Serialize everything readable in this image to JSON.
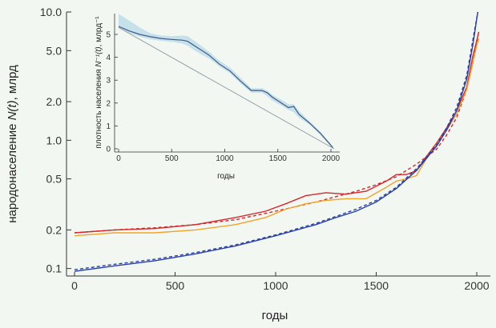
{
  "chart_data": [
    {
      "type": "line",
      "xlabel": "годы",
      "ylabel_prefix": "народонаселение ",
      "ylabel_italic": "N(t)",
      "ylabel_suffix": ", млрд",
      "xlim": [
        0,
        2050
      ],
      "ylim": [
        0.09,
        10.0
      ],
      "yscale": "log",
      "x_ticks": [
        "0",
        "500",
        "1000",
        "1500",
        "2000"
      ],
      "x_tick_values": [
        0,
        500,
        1000,
        1500,
        2000
      ],
      "y_ticks": [
        "10.0",
        "5.0",
        "2.0",
        "1.0",
        "0.5",
        "0.2",
        "0.1"
      ],
      "y_tick_values": [
        10.0,
        5.0,
        2.0,
        1.0,
        0.5,
        0.2,
        0.1
      ],
      "grid": false,
      "series": [
        {
          "color": "#d8262c",
          "style": "solid",
          "points": [
            [
              0,
              0.19
            ],
            [
              200,
              0.2
            ],
            [
              400,
              0.205
            ],
            [
              600,
              0.22
            ],
            [
              800,
              0.25
            ],
            [
              950,
              0.28
            ],
            [
              1050,
              0.32
            ],
            [
              1150,
              0.37
            ],
            [
              1250,
              0.39
            ],
            [
              1350,
              0.38
            ],
            [
              1450,
              0.4
            ],
            [
              1550,
              0.48
            ],
            [
              1600,
              0.54
            ],
            [
              1650,
              0.54
            ],
            [
              1700,
              0.58
            ],
            [
              1750,
              0.75
            ],
            [
              1800,
              0.95
            ],
            [
              1850,
              1.25
            ],
            [
              1900,
              1.7
            ],
            [
              1950,
              2.6
            ],
            [
              1980,
              4.5
            ],
            [
              2000,
              6.0
            ],
            [
              2010,
              7.0
            ]
          ]
        },
        {
          "color": "#d8262c",
          "style": "dashed",
          "points": [
            [
              0,
              0.19
            ],
            [
              200,
              0.2
            ],
            [
              400,
              0.208
            ],
            [
              600,
              0.22
            ],
            [
              800,
              0.24
            ],
            [
              1000,
              0.28
            ],
            [
              1200,
              0.33
            ],
            [
              1400,
              0.4
            ],
            [
              1500,
              0.45
            ],
            [
              1600,
              0.52
            ],
            [
              1700,
              0.65
            ],
            [
              1800,
              0.85
            ],
            [
              1850,
              1.1
            ],
            [
              1900,
              1.5
            ],
            [
              1950,
              2.5
            ],
            [
              1980,
              4.0
            ],
            [
              2010,
              7.0
            ]
          ]
        },
        {
          "color": "#f0a42a",
          "style": "solid",
          "points": [
            [
              0,
              0.18
            ],
            [
              200,
              0.19
            ],
            [
              400,
              0.19
            ],
            [
              600,
              0.2
            ],
            [
              800,
              0.22
            ],
            [
              950,
              0.25
            ],
            [
              1050,
              0.29
            ],
            [
              1150,
              0.32
            ],
            [
              1250,
              0.34
            ],
            [
              1350,
              0.35
            ],
            [
              1450,
              0.35
            ],
            [
              1550,
              0.43
            ],
            [
              1600,
              0.48
            ],
            [
              1650,
              0.5
            ],
            [
              1700,
              0.53
            ],
            [
              1750,
              0.72
            ],
            [
              1800,
              0.93
            ],
            [
              1850,
              1.2
            ],
            [
              1900,
              1.6
            ],
            [
              1950,
              2.5
            ],
            [
              1980,
              4.0
            ],
            [
              2000,
              5.5
            ],
            [
              2010,
              6.2
            ]
          ]
        },
        {
          "color": "#2a3fa8",
          "style": "solid",
          "points": [
            [
              0,
              0.095
            ],
            [
              200,
              0.105
            ],
            [
              400,
              0.115
            ],
            [
              600,
              0.13
            ],
            [
              800,
              0.15
            ],
            [
              1000,
              0.18
            ],
            [
              1200,
              0.22
            ],
            [
              1300,
              0.25
            ],
            [
              1400,
              0.28
            ],
            [
              1500,
              0.33
            ],
            [
              1600,
              0.42
            ],
            [
              1700,
              0.58
            ],
            [
              1800,
              0.9
            ],
            [
              1850,
              1.2
            ],
            [
              1900,
              1.7
            ],
            [
              1950,
              3.0
            ],
            [
              1980,
              5.5
            ],
            [
              2005,
              10.0
            ]
          ]
        },
        {
          "color": "#2a3fa8",
          "style": "dashed",
          "points": [
            [
              0,
              0.098
            ],
            [
              200,
              0.108
            ],
            [
              400,
              0.118
            ],
            [
              600,
              0.133
            ],
            [
              800,
              0.153
            ],
            [
              1000,
              0.183
            ],
            [
              1200,
              0.225
            ],
            [
              1300,
              0.255
            ],
            [
              1400,
              0.29
            ],
            [
              1500,
              0.34
            ],
            [
              1600,
              0.43
            ],
            [
              1700,
              0.6
            ],
            [
              1800,
              0.92
            ],
            [
              1850,
              1.25
            ],
            [
              1900,
              1.8
            ],
            [
              1950,
              3.2
            ],
            [
              1980,
              6.0
            ],
            [
              2005,
              10.0
            ]
          ]
        }
      ]
    },
    {
      "type": "line",
      "xlabel": "годы",
      "ylabel_prefix": "плотность населения ",
      "ylabel_italic": "N⁻¹(t)",
      "ylabel_suffix": ", млрд⁻¹",
      "xlim": [
        0,
        2050
      ],
      "ylim": [
        -0.1,
        5.8
      ],
      "x_ticks": [
        "0",
        "500",
        "1000",
        "1500",
        "2000"
      ],
      "x_tick_values": [
        0,
        500,
        1000,
        1500,
        2000
      ],
      "y_ticks": [
        "0",
        "1",
        "2",
        "3",
        "4",
        "5"
      ],
      "y_tick_values": [
        0,
        1,
        2,
        3,
        4,
        5
      ],
      "grid": false,
      "band_color": "#c7e1ea",
      "band": [
        [
          0,
          5.3,
          5.9
        ],
        [
          100,
          5.05,
          5.6
        ],
        [
          200,
          4.9,
          5.3
        ],
        [
          300,
          4.78,
          5.05
        ],
        [
          400,
          4.72,
          4.95
        ],
        [
          500,
          4.67,
          4.92
        ],
        [
          600,
          4.6,
          4.95
        ],
        [
          650,
          4.5,
          4.92
        ],
        [
          750,
          4.2,
          4.6
        ],
        [
          850,
          3.95,
          4.25
        ],
        [
          950,
          3.6,
          3.85
        ],
        [
          1050,
          3.3,
          3.55
        ],
        [
          1150,
          2.85,
          3.1
        ],
        [
          1250,
          2.45,
          2.65
        ],
        [
          1350,
          2.45,
          2.65
        ],
        [
          1400,
          2.3,
          2.55
        ],
        [
          1450,
          2.1,
          2.35
        ],
        [
          1550,
          1.85,
          2.1
        ],
        [
          1600,
          1.7,
          1.95
        ],
        [
          1650,
          1.6,
          1.95
        ],
        [
          1700,
          1.35,
          1.65
        ],
        [
          1800,
          1.05,
          1.2
        ],
        [
          1900,
          0.6,
          0.75
        ],
        [
          2000,
          0.1,
          0.2
        ]
      ],
      "series": [
        {
          "color": "#3e5a8a",
          "style": "solid",
          "points": [
            [
              0,
              5.35
            ],
            [
              100,
              5.15
            ],
            [
              200,
              5.0
            ],
            [
              300,
              4.9
            ],
            [
              400,
              4.82
            ],
            [
              500,
              4.78
            ],
            [
              600,
              4.75
            ],
            [
              650,
              4.7
            ],
            [
              750,
              4.4
            ],
            [
              850,
              4.1
            ],
            [
              950,
              3.7
            ],
            [
              1050,
              3.4
            ],
            [
              1150,
              2.95
            ],
            [
              1250,
              2.55
            ],
            [
              1350,
              2.55
            ],
            [
              1400,
              2.45
            ],
            [
              1450,
              2.25
            ],
            [
              1550,
              1.95
            ],
            [
              1600,
              1.8
            ],
            [
              1650,
              1.85
            ],
            [
              1700,
              1.5
            ],
            [
              1800,
              1.12
            ],
            [
              1900,
              0.68
            ],
            [
              2000,
              0.15
            ],
            [
              2020,
              0.05
            ]
          ]
        },
        {
          "color": "#8a9aa4",
          "style": "solid",
          "points": [
            [
              0,
              5.3
            ],
            [
              2030,
              0.0
            ]
          ]
        }
      ]
    }
  ]
}
